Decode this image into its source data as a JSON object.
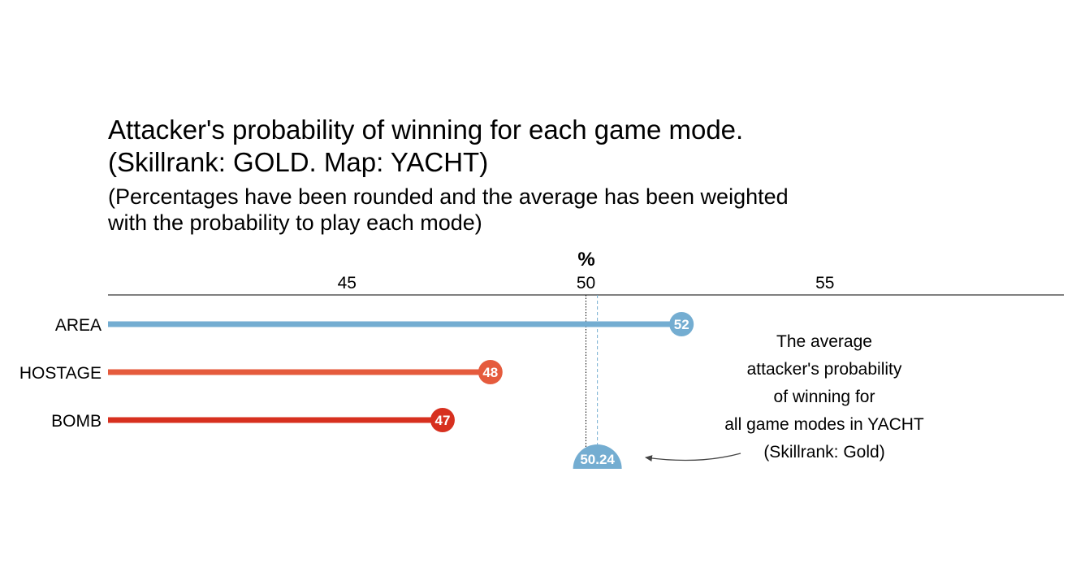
{
  "title_lines": [
    "Attacker's probability of winning for each game mode.",
    "(Skillrank: GOLD. Map: YACHT)"
  ],
  "subtitle_lines": [
    "(Percentages have been rounded and the average has been weighted",
    "with the probability to play each mode)"
  ],
  "chart_data": {
    "type": "lollipop",
    "xlabel": "%",
    "xticks": [
      45,
      50,
      55
    ],
    "xlim": [
      40,
      60
    ],
    "reference_line": 50,
    "categories": [
      "AREA",
      "HOSTAGE",
      "BOMB"
    ],
    "values": [
      52,
      48,
      47
    ],
    "value_labels": [
      "52",
      "48",
      "47"
    ],
    "colors": [
      "#74add1",
      "#e55b3d",
      "#d7301f"
    ],
    "average": {
      "value": 50.24,
      "label": "50.24",
      "color": "#74add1"
    },
    "grid": false
  },
  "annotation_lines": [
    "The average",
    "attacker's probability",
    "of winning for",
    "all game modes in YACHT",
    "(Skillrank: Gold)"
  ]
}
